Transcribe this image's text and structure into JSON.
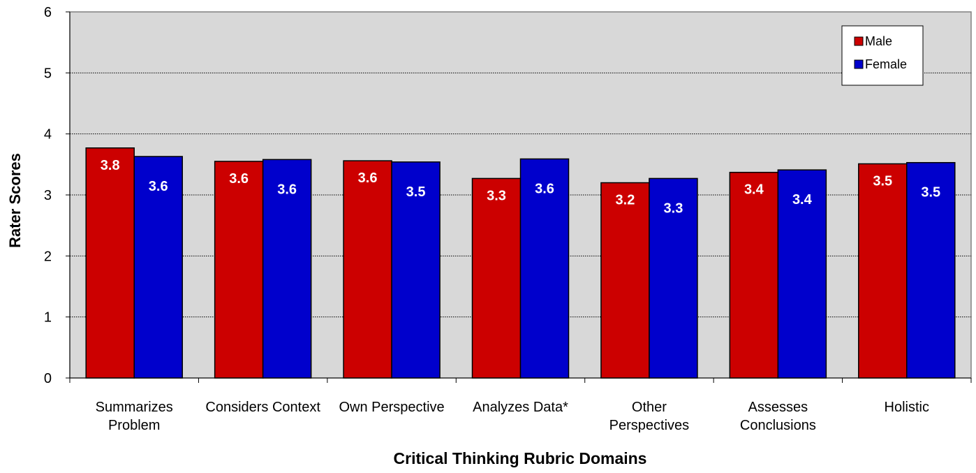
{
  "chart_data": {
    "type": "bar",
    "xlabel": "Critical Thinking Rubric Domains",
    "ylabel": "Rater Scores",
    "ylim": [
      0,
      6
    ],
    "yticks": [
      0,
      1,
      2,
      3,
      4,
      5,
      6
    ],
    "grid": true,
    "legend_position": "top-right",
    "plot_background": "#d8d8d8",
    "categories": [
      "Summarizes Problem",
      "Considers Context",
      "Own Perspective",
      "Analyzes Data*",
      "Other Perspectives",
      "Assesses Conclusions",
      "Holistic"
    ],
    "category_label_lines": [
      [
        "Summarizes",
        "Problem"
      ],
      [
        "Considers Context"
      ],
      [
        "Own Perspective"
      ],
      [
        "Analyzes Data*"
      ],
      [
        "Other",
        "Perspectives"
      ],
      [
        "Assesses",
        "Conclusions"
      ],
      [
        "Holistic"
      ]
    ],
    "series": [
      {
        "name": "Male",
        "color": "#cc0000",
        "values": [
          3.77,
          3.55,
          3.56,
          3.27,
          3.2,
          3.37,
          3.51
        ],
        "labels": [
          "3.8",
          "3.6",
          "3.6",
          "3.3",
          "3.2",
          "3.4",
          "3.5"
        ]
      },
      {
        "name": "Female",
        "color": "#0000cc",
        "values": [
          3.63,
          3.58,
          3.54,
          3.59,
          3.27,
          3.41,
          3.53
        ],
        "labels": [
          "3.6",
          "3.6",
          "3.5",
          "3.6",
          "3.3",
          "3.4",
          "3.5"
        ]
      }
    ]
  }
}
